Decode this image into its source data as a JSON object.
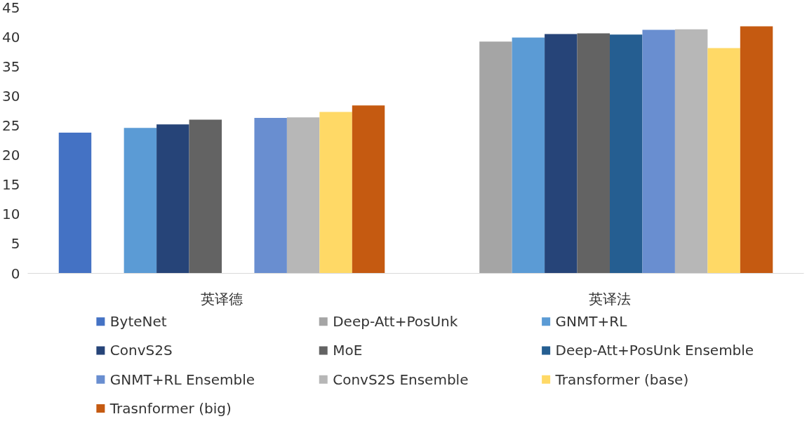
{
  "chart_data": {
    "type": "bar",
    "categories": [
      "英译德",
      "英译法"
    ],
    "ylim": [
      0,
      45
    ],
    "yticks": [
      0,
      5,
      10,
      15,
      20,
      25,
      30,
      35,
      40,
      45
    ],
    "grid": false,
    "legend": "bottom",
    "series": [
      {
        "name": "ByteNet",
        "color": "#4472c4",
        "values": [
          23.8,
          null
        ]
      },
      {
        "name": "Deep-Att+PosUnk",
        "color": "#a5a5a5",
        "values": [
          null,
          39.2
        ]
      },
      {
        "name": "GNMT+RL",
        "color": "#5b9bd5",
        "values": [
          24.6,
          39.9
        ]
      },
      {
        "name": "ConvS2S",
        "color": "#264478",
        "values": [
          25.2,
          40.5
        ]
      },
      {
        "name": "MoE",
        "color": "#636363",
        "values": [
          26.0,
          40.6
        ]
      },
      {
        "name": "Deep-Att+PosUnk Ensemble",
        "color": "#255e91",
        "values": [
          null,
          40.4
        ]
      },
      {
        "name": "GNMT+RL Ensemble",
        "color": "#698ed0",
        "values": [
          26.3,
          41.2
        ]
      },
      {
        "name": "ConvS2S Ensemble",
        "color": "#b7b7b7",
        "values": [
          26.4,
          41.3
        ]
      },
      {
        "name": "Transformer (base)",
        "color": "#ffd966",
        "values": [
          27.3,
          38.1
        ]
      },
      {
        "name": "Trasnformer (big)",
        "color": "#c55a11",
        "values": [
          28.4,
          41.8
        ]
      }
    ]
  }
}
